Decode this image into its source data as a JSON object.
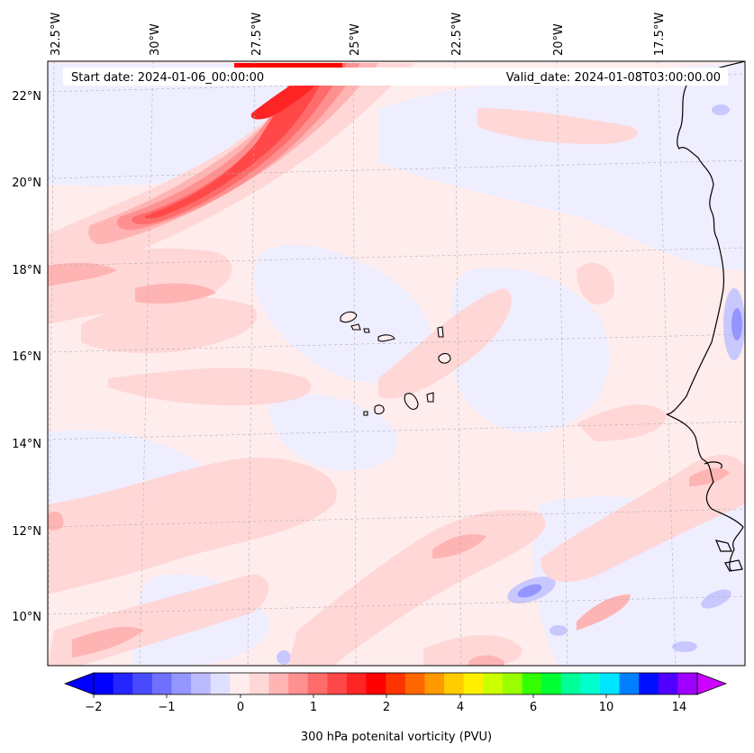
{
  "map": {
    "header": {
      "start_date": "Start date: 2024-01-06_00:00:00",
      "valid_date": "Valid_date: 2024-01-08T03:00:00.00"
    },
    "longitude_labels": [
      "32.5°W",
      "30°W",
      "27.5°W",
      "25°W",
      "22.5°W",
      "20°W",
      "17.5°W"
    ],
    "latitude_labels": [
      "22°N",
      "20°N",
      "18°N",
      "16°N",
      "14°N",
      "12°N",
      "10°N"
    ],
    "extent": {
      "lon_min": -32.5,
      "lon_max": -15.5,
      "lat_min": 8.8,
      "lat_max": 22.7
    },
    "variable": "300 hPa potential vorticity"
  },
  "colorbar": {
    "label": "300 hPa potenital vorticity (PVU)",
    "tick_labels": [
      "−2",
      "−1",
      "0",
      "1",
      "2",
      "4",
      "6",
      "10",
      "14"
    ],
    "colors": [
      "#0000ff",
      "#2525ff",
      "#4a4aff",
      "#7070ff",
      "#9595ff",
      "#babaff",
      "#dfdfff",
      "#ffecec",
      "#ffd7d7",
      "#ffb4b4",
      "#ff9090",
      "#ff6c6c",
      "#ff4848",
      "#ff2424",
      "#ff0000",
      "#ff3300",
      "#ff6600",
      "#ff9900",
      "#ffcc00",
      "#fff000",
      "#ccff00",
      "#99ff00",
      "#33ff00",
      "#00ff33",
      "#00ff99",
      "#00ffcc",
      "#00e5ff",
      "#0080ff",
      "#0010ff",
      "#5000ff",
      "#a000ff"
    ],
    "under_color": "#0000ff",
    "over_color": "#cc00ff"
  }
}
